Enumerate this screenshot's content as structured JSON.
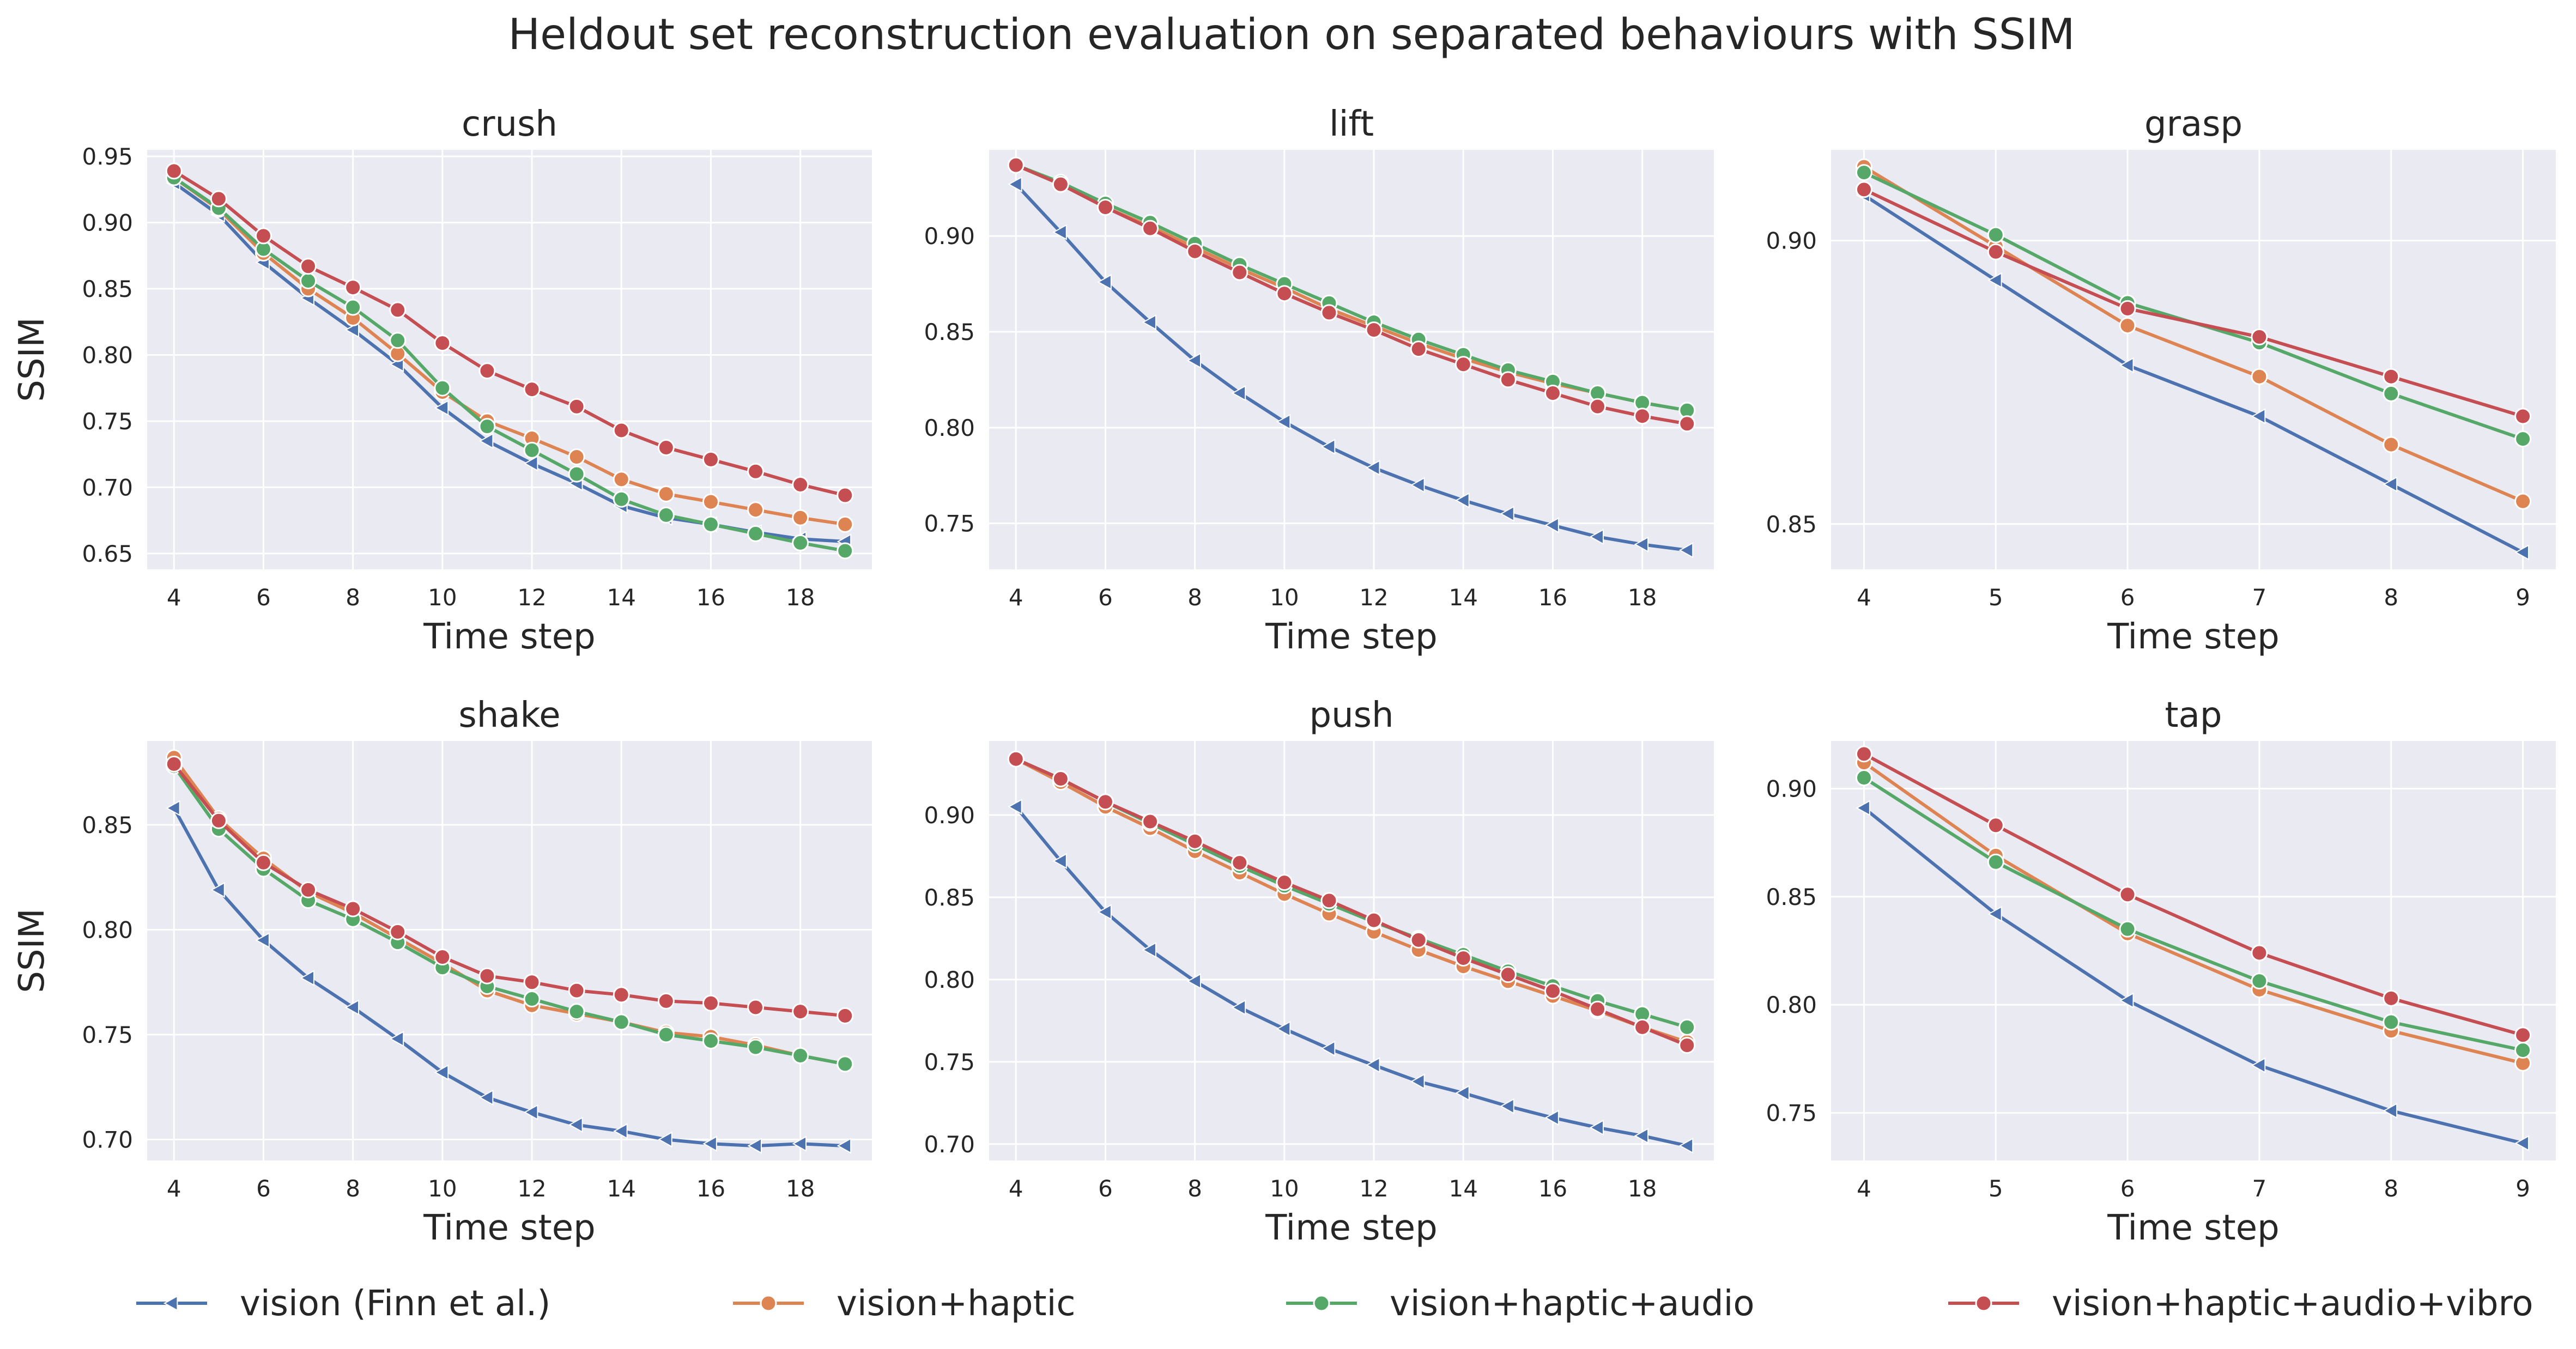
{
  "title": "Heldout set reconstruction evaluation on separated behaviours with SSIM",
  "colors": {
    "vision": "#4c72b0",
    "haptic": "#dd8452",
    "audio": "#55a868",
    "vibro": "#c44e52",
    "panel_bg": "#eaeaf2",
    "grid": "#ffffff"
  },
  "legend": [
    {
      "key": "vision",
      "label": "vision (Finn et al.)",
      "marker": "tri"
    },
    {
      "key": "haptic",
      "label": "vision+haptic",
      "marker": "circle"
    },
    {
      "key": "audio",
      "label": "vision+haptic+audio",
      "marker": "circle"
    },
    {
      "key": "vibro",
      "label": "vision+haptic+audio+vibro",
      "marker": "circle"
    }
  ],
  "chart_data": [
    {
      "type": "line",
      "title": "crush",
      "xlabel": "Time step",
      "ylabel": "SSIM",
      "x": [
        4,
        5,
        6,
        7,
        8,
        9,
        10,
        11,
        12,
        13,
        14,
        15,
        16,
        17,
        18,
        19
      ],
      "xlim": [
        3.4,
        19.6
      ],
      "ylim": [
        0.638,
        0.955
      ],
      "xticks": [
        4,
        6,
        8,
        10,
        12,
        14,
        16,
        18
      ],
      "yticks": [
        0.65,
        0.7,
        0.75,
        0.8,
        0.85,
        0.9,
        0.95
      ],
      "yticklabels": [
        "0.65",
        "0.70",
        "0.75",
        "0.80",
        "0.85",
        "0.90",
        "0.95"
      ],
      "series": [
        {
          "key": "vision",
          "values": [
            0.93,
            0.906,
            0.87,
            0.843,
            0.819,
            0.793,
            0.76,
            0.735,
            0.718,
            0.703,
            0.686,
            0.677,
            0.672,
            0.666,
            0.661,
            0.659
          ]
        },
        {
          "key": "haptic",
          "values": [
            0.934,
            0.91,
            0.877,
            0.85,
            0.828,
            0.801,
            0.772,
            0.75,
            0.737,
            0.723,
            0.706,
            0.695,
            0.689,
            0.683,
            0.677,
            0.672
          ]
        },
        {
          "key": "audio",
          "values": [
            0.934,
            0.911,
            0.88,
            0.856,
            0.836,
            0.811,
            0.775,
            0.746,
            0.728,
            0.71,
            0.691,
            0.679,
            0.672,
            0.665,
            0.658,
            0.652
          ]
        },
        {
          "key": "vibro",
          "values": [
            0.939,
            0.918,
            0.89,
            0.867,
            0.851,
            0.834,
            0.809,
            0.788,
            0.774,
            0.761,
            0.743,
            0.73,
            0.721,
            0.712,
            0.702,
            0.694
          ]
        }
      ]
    },
    {
      "type": "line",
      "title": "lift",
      "xlabel": "Time step",
      "ylabel": "",
      "x": [
        4,
        5,
        6,
        7,
        8,
        9,
        10,
        11,
        12,
        13,
        14,
        15,
        16,
        17,
        18,
        19
      ],
      "xlim": [
        3.4,
        19.6
      ],
      "ylim": [
        0.726,
        0.945
      ],
      "xticks": [
        4,
        6,
        8,
        10,
        12,
        14,
        16,
        18
      ],
      "yticks": [
        0.75,
        0.8,
        0.85,
        0.9
      ],
      "yticklabels": [
        "0.75",
        "0.80",
        "0.85",
        "0.90"
      ],
      "series": [
        {
          "key": "vision",
          "values": [
            0.927,
            0.902,
            0.876,
            0.855,
            0.835,
            0.818,
            0.803,
            0.79,
            0.779,
            0.77,
            0.762,
            0.755,
            0.749,
            0.743,
            0.739,
            0.736
          ]
        },
        {
          "key": "haptic",
          "values": [
            0.937,
            0.927,
            0.915,
            0.905,
            0.894,
            0.883,
            0.873,
            0.862,
            0.853,
            0.844,
            0.836,
            0.829,
            0.823,
            0.818,
            0.813,
            0.809
          ]
        },
        {
          "key": "audio",
          "values": [
            0.937,
            0.928,
            0.917,
            0.907,
            0.896,
            0.885,
            0.875,
            0.865,
            0.855,
            0.846,
            0.838,
            0.83,
            0.824,
            0.818,
            0.813,
            0.809
          ]
        },
        {
          "key": "vibro",
          "values": [
            0.937,
            0.927,
            0.915,
            0.904,
            0.892,
            0.881,
            0.87,
            0.86,
            0.851,
            0.841,
            0.833,
            0.825,
            0.818,
            0.811,
            0.806,
            0.802
          ]
        }
      ]
    },
    {
      "type": "line",
      "title": "grasp",
      "xlabel": "Time step",
      "ylabel": "",
      "x": [
        4,
        5,
        6,
        7,
        8,
        9
      ],
      "xlim": [
        3.75,
        9.25
      ],
      "ylim": [
        0.842,
        0.916
      ],
      "xticks": [
        4,
        5,
        6,
        7,
        8,
        9
      ],
      "yticks": [
        0.85,
        0.9
      ],
      "yticklabels": [
        "0.85",
        "0.90"
      ],
      "series": [
        {
          "key": "vision",
          "values": [
            0.908,
            0.893,
            0.878,
            0.869,
            0.857,
            0.845
          ]
        },
        {
          "key": "haptic",
          "values": [
            0.913,
            0.899,
            0.885,
            0.876,
            0.864,
            0.854
          ]
        },
        {
          "key": "audio",
          "values": [
            0.912,
            0.901,
            0.889,
            0.882,
            0.873,
            0.865
          ]
        },
        {
          "key": "vibro",
          "values": [
            0.909,
            0.898,
            0.888,
            0.883,
            0.876,
            0.869
          ]
        }
      ]
    },
    {
      "type": "line",
      "title": "shake",
      "xlabel": "Time step",
      "ylabel": "SSIM",
      "x": [
        4,
        5,
        6,
        7,
        8,
        9,
        10,
        11,
        12,
        13,
        14,
        15,
        16,
        17,
        18,
        19
      ],
      "xlim": [
        3.4,
        19.6
      ],
      "ylim": [
        0.69,
        0.89
      ],
      "xticks": [
        4,
        6,
        8,
        10,
        12,
        14,
        16,
        18
      ],
      "yticks": [
        0.7,
        0.75,
        0.8,
        0.85
      ],
      "yticklabels": [
        "0.70",
        "0.75",
        "0.80",
        "0.85"
      ],
      "series": [
        {
          "key": "vision",
          "values": [
            0.858,
            0.819,
            0.795,
            0.777,
            0.763,
            0.748,
            0.732,
            0.72,
            0.713,
            0.707,
            0.704,
            0.7,
            0.698,
            0.697,
            0.698,
            0.697
          ]
        },
        {
          "key": "haptic",
          "values": [
            0.882,
            0.853,
            0.834,
            0.818,
            0.808,
            0.796,
            0.784,
            0.771,
            0.764,
            0.76,
            0.756,
            0.751,
            0.749,
            0.745,
            0.74,
            0.736
          ]
        },
        {
          "key": "audio",
          "values": [
            0.878,
            0.848,
            0.829,
            0.814,
            0.805,
            0.794,
            0.782,
            0.773,
            0.767,
            0.761,
            0.756,
            0.75,
            0.747,
            0.744,
            0.74,
            0.736
          ]
        },
        {
          "key": "vibro",
          "values": [
            0.879,
            0.852,
            0.832,
            0.819,
            0.81,
            0.799,
            0.787,
            0.778,
            0.775,
            0.771,
            0.769,
            0.766,
            0.765,
            0.763,
            0.761,
            0.759
          ]
        }
      ]
    },
    {
      "type": "line",
      "title": "push",
      "xlabel": "Time step",
      "ylabel": "",
      "x": [
        4,
        5,
        6,
        7,
        8,
        9,
        10,
        11,
        12,
        13,
        14,
        15,
        16,
        17,
        18,
        19
      ],
      "xlim": [
        3.4,
        19.6
      ],
      "ylim": [
        0.69,
        0.945
      ],
      "xticks": [
        4,
        6,
        8,
        10,
        12,
        14,
        16,
        18
      ],
      "yticks": [
        0.7,
        0.75,
        0.8,
        0.85,
        0.9
      ],
      "yticklabels": [
        "0.70",
        "0.75",
        "0.80",
        "0.85",
        "0.90"
      ],
      "series": [
        {
          "key": "vision",
          "values": [
            0.905,
            0.872,
            0.841,
            0.818,
            0.799,
            0.783,
            0.77,
            0.758,
            0.748,
            0.738,
            0.731,
            0.723,
            0.716,
            0.71,
            0.705,
            0.699
          ]
        },
        {
          "key": "haptic",
          "values": [
            0.934,
            0.92,
            0.905,
            0.892,
            0.878,
            0.865,
            0.852,
            0.84,
            0.829,
            0.818,
            0.808,
            0.799,
            0.79,
            0.781,
            0.771,
            0.762
          ]
        },
        {
          "key": "audio",
          "values": [
            0.934,
            0.922,
            0.908,
            0.895,
            0.882,
            0.869,
            0.857,
            0.846,
            0.835,
            0.825,
            0.815,
            0.805,
            0.796,
            0.787,
            0.779,
            0.771
          ]
        },
        {
          "key": "vibro",
          "values": [
            0.934,
            0.922,
            0.908,
            0.896,
            0.884,
            0.871,
            0.859,
            0.848,
            0.836,
            0.824,
            0.813,
            0.803,
            0.793,
            0.782,
            0.771,
            0.76
          ]
        }
      ]
    },
    {
      "type": "line",
      "title": "tap",
      "xlabel": "Time step",
      "ylabel": "",
      "x": [
        4,
        5,
        6,
        7,
        8,
        9
      ],
      "xlim": [
        3.75,
        9.25
      ],
      "ylim": [
        0.728,
        0.922
      ],
      "xticks": [
        4,
        5,
        6,
        7,
        8,
        9
      ],
      "yticks": [
        0.75,
        0.8,
        0.85,
        0.9
      ],
      "yticklabels": [
        "0.75",
        "0.80",
        "0.85",
        "0.90"
      ],
      "series": [
        {
          "key": "vision",
          "values": [
            0.891,
            0.842,
            0.802,
            0.772,
            0.751,
            0.736
          ]
        },
        {
          "key": "haptic",
          "values": [
            0.912,
            0.869,
            0.833,
            0.807,
            0.788,
            0.773
          ]
        },
        {
          "key": "audio",
          "values": [
            0.905,
            0.866,
            0.835,
            0.811,
            0.792,
            0.779
          ]
        },
        {
          "key": "vibro",
          "values": [
            0.916,
            0.883,
            0.851,
            0.824,
            0.803,
            0.786
          ]
        }
      ]
    }
  ]
}
